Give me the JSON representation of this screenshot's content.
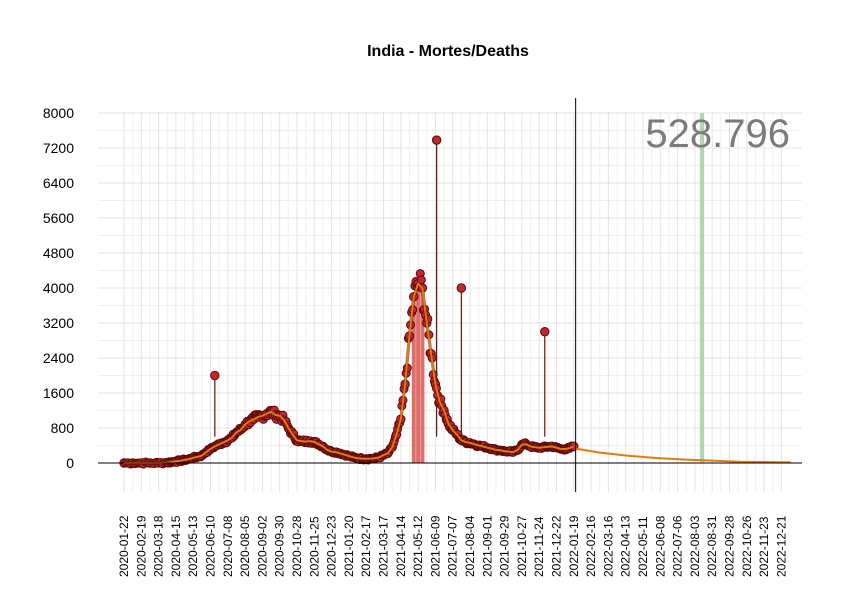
{
  "chart_data": {
    "type": "line",
    "title": "India - Mortes/Deaths",
    "total_label": "528.796",
    "xlabel": "",
    "ylabel": "",
    "ylim": [
      -600,
      8300
    ],
    "x_range": [
      "2020-01-01",
      "2023-01-20"
    ],
    "y_ticks": [
      0,
      800,
      1600,
      2400,
      3200,
      4000,
      4800,
      5600,
      6400,
      7200,
      8000
    ],
    "y_tick_labels": [
      "0",
      "800",
      "1600",
      "2400",
      "3200",
      "4000",
      "4800",
      "5600",
      "6400",
      "7200",
      "8000"
    ],
    "x_tick_labels": [
      "2020-01-22",
      "2020-02-19",
      "2020-03-18",
      "2020-04-15",
      "2020-05-13",
      "2020-06-10",
      "2020-07-08",
      "2020-08-05",
      "2020-09-02",
      "2020-09-30",
      "2020-10-28",
      "2020-11-25",
      "2020-12-23",
      "2021-01-20",
      "2021-02-17",
      "2021-03-17",
      "2021-04-14",
      "2021-05-12",
      "2021-06-09",
      "2021-07-07",
      "2021-08-04",
      "2021-09-01",
      "2021-09-29",
      "2021-10-27",
      "2021-11-24",
      "2021-12-22",
      "2022-01-19",
      "2022-02-16",
      "2022-03-16",
      "2022-04-13",
      "2022-05-11",
      "2022-06-08",
      "2022-07-06",
      "2022-08-03",
      "2022-08-31",
      "2022-09-28",
      "2022-10-26",
      "2022-11-23",
      "2022-12-21"
    ],
    "grid": true,
    "vline_date": "2022-01-22",
    "highlight_band": [
      "2022-08-11",
      "2022-08-18"
    ],
    "colors": {
      "points_fill": "#c1272d",
      "points_stroke": "#5a0a0a",
      "spikes": "#6b0f0f",
      "smooth": "#e07b10",
      "projection": "#e07b10",
      "band": "#a9d1a9",
      "peak_bars": "#d9534f",
      "vline": "#000000"
    },
    "series": [
      {
        "name": "",
        "kind": "daily_deaths",
        "points": [
          [
            "2020-01-22",
            0
          ],
          [
            "2020-02-05",
            0
          ],
          [
            "2020-02-19",
            0
          ],
          [
            "2020-03-04",
            0
          ],
          [
            "2020-03-18",
            1
          ],
          [
            "2020-04-01",
            10
          ],
          [
            "2020-04-08",
            25
          ],
          [
            "2020-04-15",
            40
          ],
          [
            "2020-04-22",
            50
          ],
          [
            "2020-04-29",
            70
          ],
          [
            "2020-05-06",
            90
          ],
          [
            "2020-05-13",
            120
          ],
          [
            "2020-05-20",
            140
          ],
          [
            "2020-05-27",
            170
          ],
          [
            "2020-06-03",
            250
          ],
          [
            "2020-06-10",
            320
          ],
          [
            "2020-06-17",
            380
          ],
          [
            "2020-06-24",
            430
          ],
          [
            "2020-07-01",
            470
          ],
          [
            "2020-07-08",
            520
          ],
          [
            "2020-07-15",
            580
          ],
          [
            "2020-07-22",
            700
          ],
          [
            "2020-07-29",
            760
          ],
          [
            "2020-08-05",
            880
          ],
          [
            "2020-08-12",
            950
          ],
          [
            "2020-08-19",
            1000
          ],
          [
            "2020-08-26",
            1050
          ],
          [
            "2020-09-02",
            1080
          ],
          [
            "2020-09-09",
            1130
          ],
          [
            "2020-09-16",
            1170
          ],
          [
            "2020-09-23",
            1100
          ],
          [
            "2020-09-30",
            1080
          ],
          [
            "2020-10-07",
            980
          ],
          [
            "2020-10-14",
            800
          ],
          [
            "2020-10-21",
            650
          ],
          [
            "2020-10-28",
            520
          ],
          [
            "2020-11-04",
            500
          ],
          [
            "2020-11-11",
            490
          ],
          [
            "2020-11-18",
            500
          ],
          [
            "2020-11-25",
            480
          ],
          [
            "2020-12-02",
            430
          ],
          [
            "2020-12-09",
            380
          ],
          [
            "2020-12-16",
            300
          ],
          [
            "2020-12-23",
            260
          ],
          [
            "2020-12-30",
            250
          ],
          [
            "2021-01-06",
            220
          ],
          [
            "2021-01-13",
            190
          ],
          [
            "2021-01-20",
            160
          ],
          [
            "2021-01-27",
            130
          ],
          [
            "2021-02-03",
            110
          ],
          [
            "2021-02-10",
            100
          ],
          [
            "2021-02-17",
            95
          ],
          [
            "2021-02-24",
            100
          ],
          [
            "2021-03-03",
            110
          ],
          [
            "2021-03-10",
            130
          ],
          [
            "2021-03-17",
            180
          ],
          [
            "2021-03-24",
            220
          ],
          [
            "2021-03-31",
            360
          ],
          [
            "2021-04-07",
            650
          ],
          [
            "2021-04-14",
            1000
          ],
          [
            "2021-04-21",
            1800
          ],
          [
            "2021-04-28",
            2900
          ],
          [
            "2021-05-05",
            3800
          ],
          [
            "2021-05-12",
            4100
          ],
          [
            "2021-05-19",
            4000
          ],
          [
            "2021-05-26",
            3200
          ],
          [
            "2021-06-02",
            2500
          ],
          [
            "2021-06-09",
            1800
          ],
          [
            "2021-06-16",
            1400
          ],
          [
            "2021-06-23",
            1200
          ],
          [
            "2021-06-30",
            900
          ],
          [
            "2021-07-07",
            750
          ],
          [
            "2021-07-14",
            650
          ],
          [
            "2021-07-21",
            520
          ],
          [
            "2021-07-28",
            480
          ],
          [
            "2021-08-04",
            460
          ],
          [
            "2021-08-11",
            430
          ],
          [
            "2021-08-18",
            400
          ],
          [
            "2021-08-25",
            380
          ],
          [
            "2021-09-01",
            350
          ],
          [
            "2021-09-08",
            330
          ],
          [
            "2021-09-15",
            300
          ],
          [
            "2021-09-22",
            290
          ],
          [
            "2021-09-29",
            270
          ],
          [
            "2021-10-06",
            260
          ],
          [
            "2021-10-13",
            250
          ],
          [
            "2021-10-20",
            300
          ],
          [
            "2021-10-27",
            420
          ],
          [
            "2021-11-03",
            430
          ],
          [
            "2021-11-10",
            380
          ],
          [
            "2021-11-17",
            360
          ],
          [
            "2021-11-24",
            350
          ],
          [
            "2021-12-01",
            360
          ],
          [
            "2021-12-08",
            370
          ],
          [
            "2021-12-15",
            380
          ],
          [
            "2021-12-22",
            350
          ],
          [
            "2021-12-29",
            320
          ],
          [
            "2022-01-05",
            320
          ],
          [
            "2022-01-12",
            340
          ],
          [
            "2022-01-19",
            380
          ]
        ]
      },
      {
        "name": "",
        "kind": "spikes",
        "points": [
          [
            "2020-06-17",
            2000
          ],
          [
            "2021-06-11",
            7380
          ],
          [
            "2021-07-21",
            4000
          ],
          [
            "2021-12-03",
            3000
          ]
        ]
      },
      {
        "name": "",
        "kind": "projection",
        "points": [
          [
            "2022-01-22",
            330
          ],
          [
            "2022-03-01",
            240
          ],
          [
            "2022-04-15",
            170
          ],
          [
            "2022-06-01",
            115
          ],
          [
            "2022-07-15",
            80
          ],
          [
            "2022-08-15",
            62
          ],
          [
            "2022-09-15",
            45
          ],
          [
            "2022-10-15",
            30
          ],
          [
            "2022-11-15",
            22
          ],
          [
            "2022-12-15",
            17
          ],
          [
            "2023-01-05",
            14
          ]
        ]
      }
    ]
  }
}
